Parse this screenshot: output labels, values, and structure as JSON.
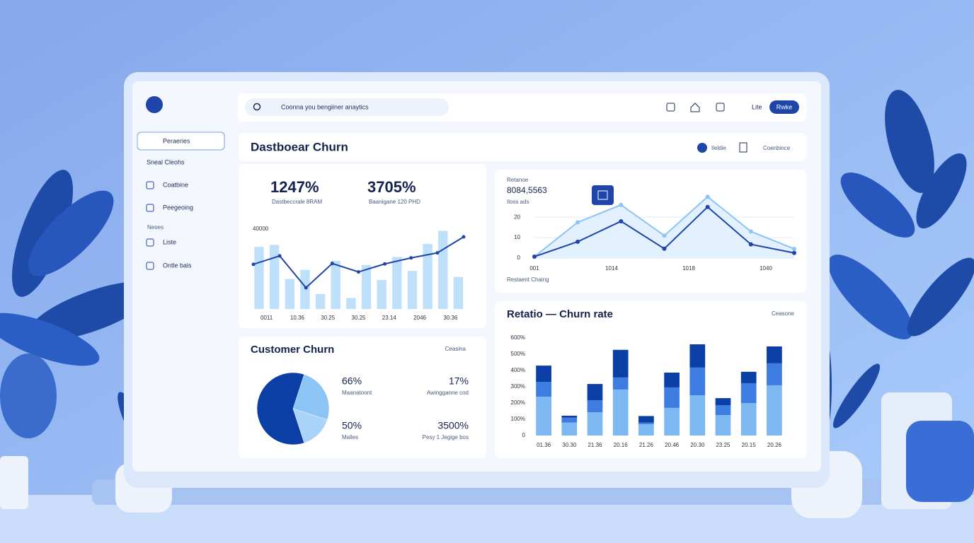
{
  "header": {
    "search": "Coonna you bengiiner anaytics",
    "actions": [
      "Lite",
      "Rwke"
    ]
  },
  "sidebar": {
    "items": [
      "Peraeries",
      "Sneal Cleohs",
      "Coatbine",
      "Peegeoing",
      "Neoes",
      "Liste",
      "Ontle bals"
    ]
  },
  "dashboard": {
    "title": "Dastboear Churn",
    "controls": [
      "Ileldie",
      "Coenbince"
    ],
    "kpis": [
      {
        "value": "1247%",
        "label": "Dastbeccrale 8RAM"
      },
      {
        "value": "3705%",
        "label": "Baanigane 120 PHD"
      }
    ]
  },
  "chart_data": [
    {
      "type": "bar",
      "x_labels": [
        "0011",
        "10.36",
        "30.25",
        "30.25",
        "23.14",
        "2046",
        "30.36"
      ],
      "ylim": [
        0,
        42000
      ],
      "yticks": [
        40000
      ],
      "series": [
        {
          "type": "bar",
          "color": "#bfe0fb",
          "values": [
            31000,
            32000,
            15000,
            19500,
            7500,
            24000,
            5500,
            22000,
            14500,
            26000,
            19000,
            32500,
            39000,
            16000
          ]
        },
        {
          "type": "line",
          "color": "#1f45a8",
          "values": [
            22300,
            26500,
            10600,
            22700,
            18500,
            22500,
            25500,
            28000,
            36000
          ]
        }
      ]
    },
    {
      "type": "line",
      "title": "Retanoe",
      "subtitle": "8084,5563",
      "note": "Iloss ads",
      "caption": "Restaent Chaing",
      "x_labels": [
        "001",
        "1014",
        "1018",
        "1040"
      ],
      "ylim": [
        0,
        37
      ],
      "yticks": [
        0,
        10,
        20
      ],
      "grid": true,
      "series": [
        {
          "color": "#8cc4f6",
          "values": [
            0.7,
            17.5,
            26,
            11,
            30,
            13,
            4.5
          ]
        },
        {
          "color": "#1f45a8",
          "values": [
            0.7,
            8,
            18,
            4.6,
            25,
            6.7,
            2.5
          ]
        }
      ]
    },
    {
      "type": "pie",
      "title": "Customer Churn",
      "control": "Ceasina",
      "values": [
        25,
        15,
        60
      ],
      "colors": [
        "#8cc4f6",
        "#a9d3f8",
        "#0b3fa6"
      ],
      "stats": [
        {
          "value": "66%",
          "label": "Maanatoont"
        },
        {
          "value": "17%",
          "label": "Awingganne cod"
        },
        {
          "value": "50%",
          "label": "Malles"
        },
        {
          "value": "3500%",
          "label": "Pesy 1 Jegige bos"
        }
      ]
    },
    {
      "type": "stacked-bar",
      "title": "Retatio — Churn rate",
      "control": "Ceasone",
      "categories": [
        "01.36",
        "30.30",
        "21.36",
        "20.16",
        "21.26",
        "20.46",
        "20.30",
        "23.25",
        "20.15",
        "20.26"
      ],
      "ylim": [
        0,
        600
      ],
      "yticks": [
        0,
        {
          "value": 100,
          "label": "100%"
        },
        {
          "value": 200,
          "label": "200%"
        },
        {
          "value": 300,
          "label": "300%"
        },
        {
          "value": 400,
          "label": "400%"
        },
        {
          "value": 500,
          "label": "500%"
        },
        {
          "value": 600,
          "label": "600%"
        }
      ],
      "series": [
        {
          "color": "#7db8f3",
          "values": [
            239,
            80,
            143,
            283,
            70,
            170,
            248,
            126,
            200,
            309
          ]
        },
        {
          "color": "#3d7ce0",
          "values": [
            91,
            30,
            74,
            74,
            10,
            126,
            170,
            61,
            122,
            135
          ]
        },
        {
          "color": "#0b3fa6",
          "values": [
            100,
            12,
            100,
            170,
            40,
            91,
            143,
            43,
            70,
            104
          ]
        }
      ]
    }
  ]
}
